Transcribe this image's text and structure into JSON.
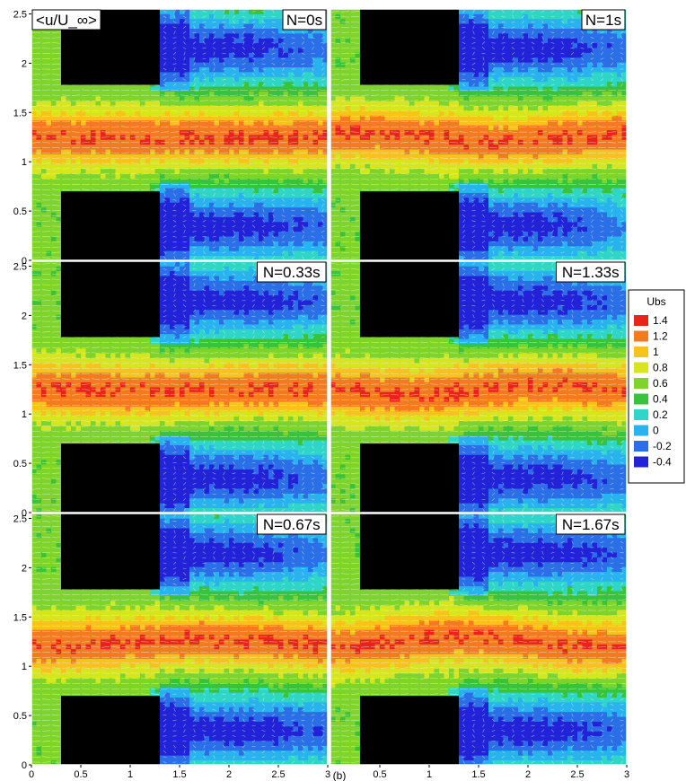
{
  "chart_data": {
    "type": "heatmap",
    "variable_label": "<u/U_∞>",
    "caption": "(b)",
    "x_range": [
      0,
      3
    ],
    "y_range": [
      0,
      2.55
    ],
    "x_ticks": [
      "0",
      "0.5",
      "1",
      "1.5",
      "2",
      "2.5",
      "3"
    ],
    "y_ticks": [
      "0",
      "0.5",
      "1",
      "1.5",
      "2",
      "2.5"
    ],
    "grid": false,
    "legend_placement": "right",
    "colorbar": {
      "title": "Ubs",
      "levels": [
        1.4,
        1.2,
        1,
        0.8,
        0.6,
        0.4,
        0.2,
        0,
        -0.2,
        -0.4
      ],
      "level_labels": [
        "1.4",
        "1.2",
        "1",
        "0.8",
        "0.6",
        "0.4",
        "0.2",
        "0",
        "-0.2",
        "-0.4"
      ],
      "colors": [
        "#e8231a",
        "#f47a1f",
        "#f6c21c",
        "#d6e51e",
        "#7ed42a",
        "#39c33b",
        "#2fd6c7",
        "#29b3ee",
        "#2b6fe8",
        "#2222d8"
      ]
    },
    "obstacles": [
      {
        "x": [
          0.3,
          1.3
        ],
        "y": [
          1.78,
          2.55
        ]
      },
      {
        "x": [
          0.3,
          1.3
        ],
        "y": [
          0,
          0.7
        ]
      }
    ],
    "panels": [
      {
        "label": "N=0s",
        "column": 0,
        "row": 0,
        "jet_wiggle": 0.0,
        "wake_top_extent": 2.3,
        "wake_bottom_extent": 2.6
      },
      {
        "label": "N=1s",
        "column": 1,
        "row": 0,
        "jet_wiggle": 0.25,
        "wake_top_extent": 2.4,
        "wake_bottom_extent": 2.2
      },
      {
        "label": "N=0.33s",
        "column": 0,
        "row": 1,
        "jet_wiggle": 0.12,
        "wake_top_extent": 2.5,
        "wake_bottom_extent": 2.3
      },
      {
        "label": "N=1.33s",
        "column": 1,
        "row": 1,
        "jet_wiggle": 0.3,
        "wake_top_extent": 2.5,
        "wake_bottom_extent": 2.4
      },
      {
        "label": "N=0.67s",
        "column": 0,
        "row": 2,
        "jet_wiggle": 0.2,
        "wake_top_extent": 2.2,
        "wake_bottom_extent": 2.8
      },
      {
        "label": "N=1.67s",
        "column": 1,
        "row": 2,
        "jet_wiggle": 0.35,
        "wake_top_extent": 2.6,
        "wake_bottom_extent": 2.5
      }
    ]
  }
}
